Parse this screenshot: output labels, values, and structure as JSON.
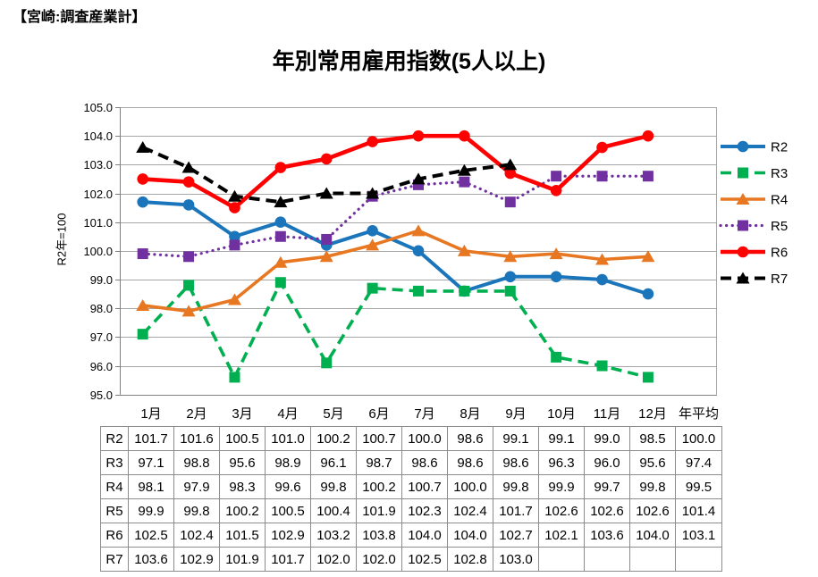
{
  "header": {
    "title": "【宮崎:調査産業計】"
  },
  "chart_data": {
    "type": "line",
    "title": "年別常用雇用指数(5人以上)",
    "xlabel": "",
    "ylabel": "R2年=100",
    "ylim": [
      95.0,
      105.0
    ],
    "ytick_step": 1.0,
    "grid": true,
    "legend_position": "right",
    "categories": [
      "1月",
      "2月",
      "3月",
      "4月",
      "5月",
      "6月",
      "7月",
      "8月",
      "9月",
      "10月",
      "11月",
      "12月",
      "年平均"
    ],
    "series": [
      {
        "name": "R2",
        "color": "#1B75BB",
        "line_style": "solid",
        "marker": "circle",
        "values": [
          101.7,
          101.6,
          100.5,
          101.0,
          100.2,
          100.7,
          100.0,
          98.6,
          99.1,
          99.1,
          99.0,
          98.5
        ],
        "annual_average": 100.0
      },
      {
        "name": "R3",
        "color": "#00B050",
        "line_style": "dash",
        "marker": "square",
        "values": [
          97.1,
          98.8,
          95.6,
          98.9,
          96.1,
          98.7,
          98.6,
          98.6,
          98.6,
          96.3,
          96.0,
          95.6
        ],
        "annual_average": 97.4
      },
      {
        "name": "R4",
        "color": "#E87722",
        "line_style": "solid",
        "marker": "triangle",
        "values": [
          98.1,
          97.9,
          98.3,
          99.6,
          99.8,
          100.2,
          100.7,
          100.0,
          99.8,
          99.9,
          99.7,
          99.8
        ],
        "annual_average": 99.5
      },
      {
        "name": "R5",
        "color": "#7030A0",
        "line_style": "dot",
        "marker": "square",
        "values": [
          99.9,
          99.8,
          100.2,
          100.5,
          100.4,
          101.9,
          102.3,
          102.4,
          101.7,
          102.6,
          102.6,
          102.6
        ],
        "annual_average": 101.4
      },
      {
        "name": "R6",
        "color": "#FF0000",
        "line_style": "solid",
        "marker": "circle",
        "values": [
          102.5,
          102.4,
          101.5,
          102.9,
          103.2,
          103.8,
          104.0,
          104.0,
          102.7,
          102.1,
          103.6,
          104.0
        ],
        "annual_average": 103.1
      },
      {
        "name": "R7",
        "color": "#000000",
        "line_style": "dash",
        "marker": "triangle",
        "values": [
          103.6,
          102.9,
          101.9,
          101.7,
          102.0,
          102.0,
          102.5,
          102.8,
          103.0,
          null,
          null,
          null
        ],
        "annual_average": null
      }
    ]
  },
  "table": {
    "corner_label": "",
    "col_headers": [
      "1月",
      "2月",
      "3月",
      "4月",
      "5月",
      "6月",
      "7月",
      "8月",
      "9月",
      "10月",
      "11月",
      "12月",
      "年平均"
    ],
    "row_headers": [
      "R2",
      "R3",
      "R4",
      "R5",
      "R6",
      "R7"
    ],
    "rows": [
      [
        "101.7",
        "101.6",
        "100.5",
        "101.0",
        "100.2",
        "100.7",
        "100.0",
        "98.6",
        "99.1",
        "99.1",
        "99.0",
        "98.5",
        "100.0"
      ],
      [
        "97.1",
        "98.8",
        "95.6",
        "98.9",
        "96.1",
        "98.7",
        "98.6",
        "98.6",
        "98.6",
        "96.3",
        "96.0",
        "95.6",
        "97.4"
      ],
      [
        "98.1",
        "97.9",
        "98.3",
        "99.6",
        "99.8",
        "100.2",
        "100.7",
        "100.0",
        "99.8",
        "99.9",
        "99.7",
        "99.8",
        "99.5"
      ],
      [
        "99.9",
        "99.8",
        "100.2",
        "100.5",
        "100.4",
        "101.9",
        "102.3",
        "102.4",
        "101.7",
        "102.6",
        "102.6",
        "102.6",
        "101.4"
      ],
      [
        "102.5",
        "102.4",
        "101.5",
        "102.9",
        "103.2",
        "103.8",
        "104.0",
        "104.0",
        "102.7",
        "102.1",
        "103.6",
        "104.0",
        "103.1"
      ],
      [
        "103.6",
        "102.9",
        "101.9",
        "101.7",
        "102.0",
        "102.0",
        "102.5",
        "102.8",
        "103.0",
        "",
        "",
        "",
        ""
      ]
    ]
  }
}
